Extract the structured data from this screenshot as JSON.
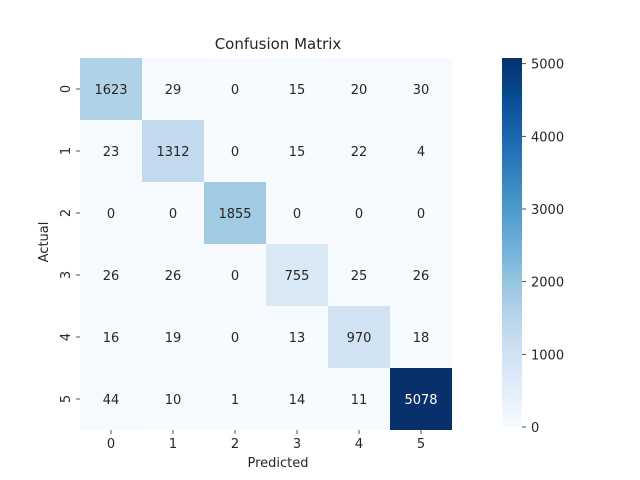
{
  "chart_data": {
    "type": "heatmap",
    "title": "Confusion Matrix",
    "xlabel": "Predicted",
    "ylabel": "Actual",
    "x_categories": [
      "0",
      "1",
      "2",
      "3",
      "4",
      "5"
    ],
    "y_categories": [
      "0",
      "1",
      "2",
      "3",
      "4",
      "5"
    ],
    "values": [
      [
        1623,
        29,
        0,
        15,
        20,
        30
      ],
      [
        23,
        1312,
        0,
        15,
        22,
        4
      ],
      [
        0,
        0,
        1855,
        0,
        0,
        0
      ],
      [
        26,
        26,
        0,
        755,
        25,
        26
      ],
      [
        16,
        19,
        0,
        13,
        970,
        18
      ],
      [
        44,
        10,
        1,
        14,
        11,
        5078
      ]
    ],
    "colormap": "Blues",
    "colorbar": {
      "min": 0,
      "max": 5078,
      "ticks": [
        0,
        1000,
        2000,
        3000,
        4000,
        5000
      ]
    },
    "grid": false
  }
}
